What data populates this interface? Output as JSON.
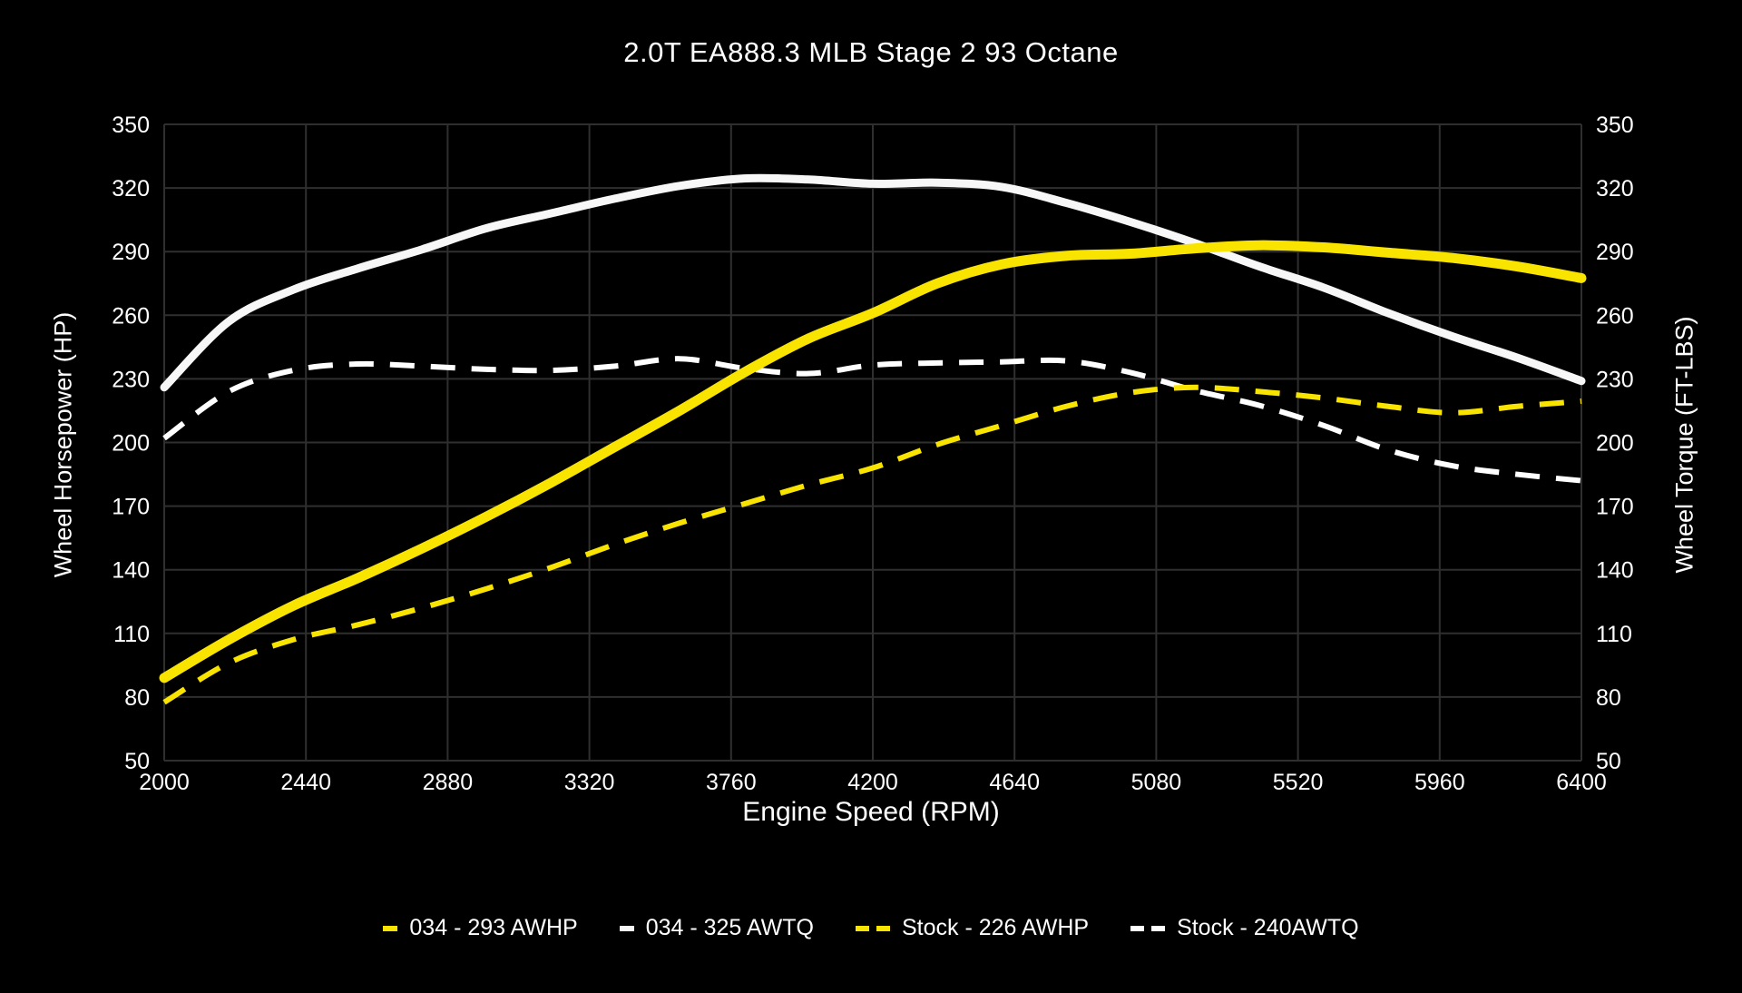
{
  "chart_data": {
    "type": "line",
    "title": "2.0T EA888.3 MLB Stage 2 93 Octane",
    "xlabel": "Engine Speed (RPM)",
    "ylabel_left": "Wheel Horsepower (HP)",
    "ylabel_right": "Wheel Torque (FT-LBS)",
    "x_range": [
      2000,
      6400
    ],
    "y_range": [
      50,
      350
    ],
    "x_ticks": [
      2000,
      2440,
      2880,
      3320,
      3760,
      4200,
      4640,
      5080,
      5520,
      5960,
      6400
    ],
    "y_ticks": [
      50,
      80,
      110,
      140,
      170,
      200,
      230,
      260,
      290,
      320,
      350
    ],
    "grid": true,
    "legend_position": "bottom",
    "background_color": "#000000",
    "gridline_color": "#2f2f2f",
    "text_color": "#ffffff",
    "x": [
      2000,
      2200,
      2400,
      2600,
      2800,
      3000,
      3200,
      3400,
      3600,
      3800,
      4000,
      4200,
      4400,
      4600,
      4800,
      5000,
      5200,
      5400,
      5600,
      5800,
      6000,
      6200,
      6400
    ],
    "series": [
      {
        "name": "034 - 293 AWHP",
        "color": "#f9e400",
        "style": "solid",
        "values": [
          89,
          107,
          123,
          136,
          150,
          165,
          181,
          198,
          215,
          233,
          249,
          261,
          275,
          284,
          288,
          289,
          291.5,
          293,
          292,
          289.5,
          287,
          283,
          277.5
        ]
      },
      {
        "name": "034 - 325 AWTQ",
        "color": "#f7f7f7",
        "style": "solid",
        "values": [
          226,
          257,
          272,
          282,
          291,
          301,
          308,
          315,
          321,
          324.5,
          324,
          322,
          322.5,
          320.5,
          313,
          304,
          294,
          283,
          273,
          261,
          250,
          240,
          229
        ]
      },
      {
        "name": "Stock - 226 AWHP",
        "color": "#f9e400",
        "style": "dashed",
        "values": [
          77.5,
          96,
          107,
          114,
          122,
          131,
          141,
          152,
          162,
          171,
          180,
          188,
          199,
          208,
          217,
          223.5,
          226,
          224,
          221,
          217,
          214,
          217,
          219.5
        ]
      },
      {
        "name": "Stock - 240AWTQ",
        "color": "#ffffff",
        "style": "dashed",
        "values": [
          202,
          224,
          234,
          237,
          236,
          234.5,
          234,
          236,
          239.5,
          235,
          232.5,
          236.5,
          237.5,
          238,
          238.5,
          233,
          224.5,
          217.5,
          208,
          196.5,
          189,
          185,
          182
        ]
      }
    ]
  }
}
